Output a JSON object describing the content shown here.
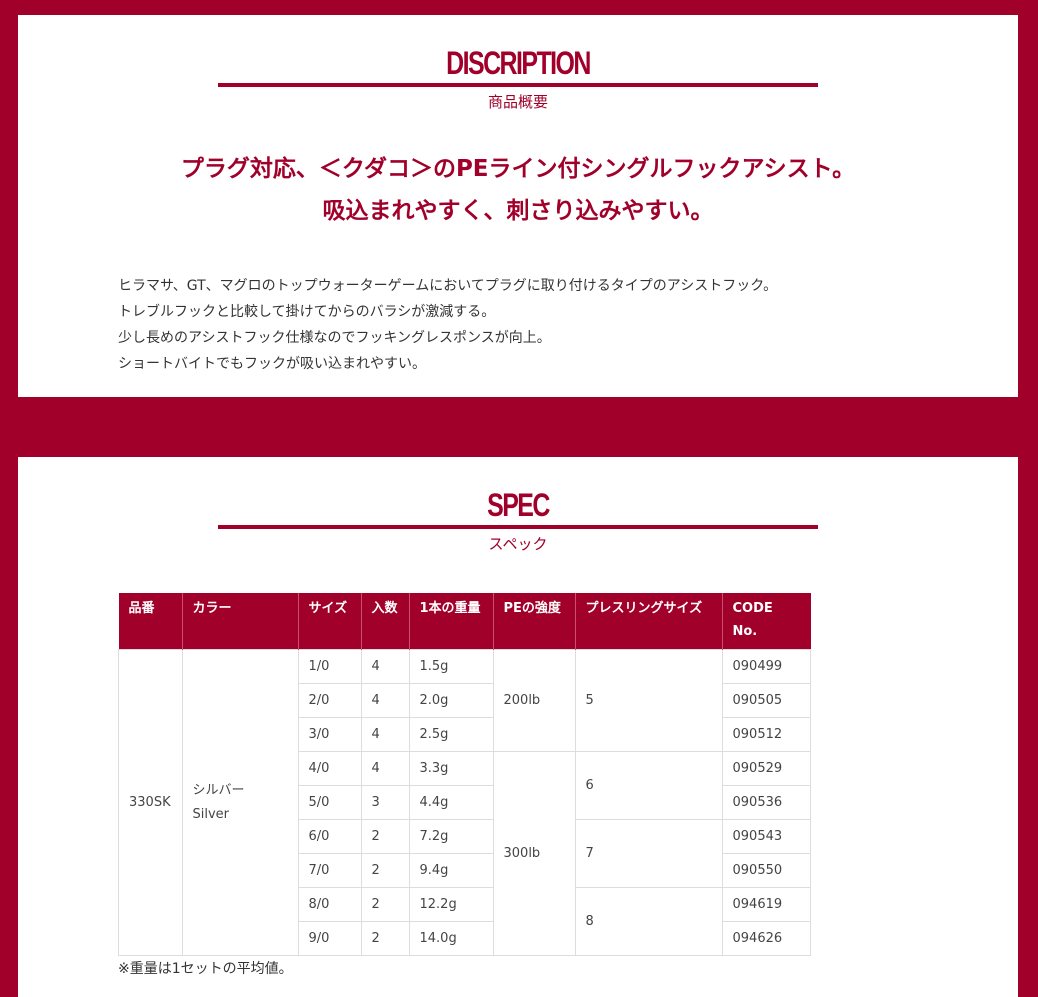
{
  "description": {
    "title": "DISCRIPTION",
    "subtitle": "商品概要",
    "lead": [
      "プラグ対応、＜クダコ＞のPEライン付シングルフックアシスト。",
      "吸込まれやすく、刺さり込みやすい。"
    ],
    "body": [
      "ヒラマサ、GT、マグロのトップウォーターゲームにおいてプラグに取り付けるタイプのアシストフック。",
      "トレブルフックと比較して掛けてからのバラシが激減する。",
      "少し長めのアシストフック仕様なのでフッキングレスポンスが向上。",
      "ショートバイトでもフックが吸い込まれやすい。"
    ]
  },
  "spec": {
    "title": "SPEC",
    "subtitle": "スペック",
    "headers": [
      "品番",
      "カラー",
      "サイズ",
      "入数",
      "1本の重量",
      "PEの強度",
      "プレスリングサイズ",
      "CODE No."
    ],
    "product_no": "330SK",
    "color": [
      "シルバー",
      "Silver"
    ],
    "rows": [
      {
        "size": "1/0",
        "qty": "4",
        "weight": "1.5g",
        "code": "090499"
      },
      {
        "size": "2/0",
        "qty": "4",
        "weight": "2.0g",
        "code": "090505"
      },
      {
        "size": "3/0",
        "qty": "4",
        "weight": "2.5g",
        "code": "090512"
      },
      {
        "size": "4/0",
        "qty": "4",
        "weight": "3.3g",
        "code": "090529"
      },
      {
        "size": "5/0",
        "qty": "3",
        "weight": "4.4g",
        "code": "090536"
      },
      {
        "size": "6/0",
        "qty": "2",
        "weight": "7.2g",
        "code": "090543"
      },
      {
        "size": "7/0",
        "qty": "2",
        "weight": "9.4g",
        "code": "090550"
      },
      {
        "size": "8/0",
        "qty": "2",
        "weight": "12.2g",
        "code": "094619"
      },
      {
        "size": "9/0",
        "qty": "2",
        "weight": "14.0g",
        "code": "094626"
      }
    ],
    "pe_groups": [
      {
        "value": "200lb",
        "rows": 3
      },
      {
        "value": "300lb",
        "rows": 6
      }
    ],
    "ring_groups": [
      {
        "value": "5",
        "rows": 3
      },
      {
        "value": "6",
        "rows": 2
      },
      {
        "value": "7",
        "rows": 2
      },
      {
        "value": "8",
        "rows": 2
      }
    ],
    "note": "※重量は1セットの平均値。"
  }
}
